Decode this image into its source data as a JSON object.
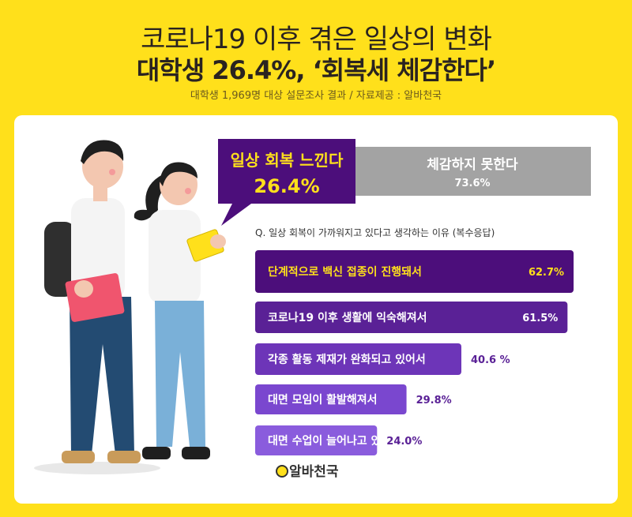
{
  "header": {
    "title_line1": "코로나19 이후 겪은 일상의 변화",
    "title_line2": "대학생 26.4%, ‘회복세 체감한다’",
    "subtitle": "대학생 1,969명 대상 설문조사 결과 / 자료제공 : 알바천국"
  },
  "summary": {
    "yes_label": "일상 회복 느낀다",
    "yes_value": "26.4%",
    "no_label": "체감하지 못한다",
    "no_value": "73.6%"
  },
  "question": "Q. 일상 회복이 가까워지고 있다고 생각하는 이유 (복수응답)",
  "logo": "알바천국",
  "colors": {
    "background": "#FFE01B",
    "accent_dark_purple": "#4C0E7B",
    "grey": "#A3A3A3",
    "bar_colors": [
      "#4C0E7B",
      "#5A2196",
      "#6D35B8",
      "#7A47CF",
      "#8A5CDD"
    ]
  },
  "chart_data": {
    "type": "bar",
    "orientation": "horizontal",
    "categories": [
      "단계적으로 백신 접종이 진행돼서",
      "코로나19 이후 생활에 익숙해져서",
      "각종 활동 제재가 완화되고 있어서",
      "대면 모임이 활발해져서",
      "대면 수업이 늘어나고 있어서"
    ],
    "values": [
      62.7,
      61.5,
      40.6,
      29.8,
      24.0
    ],
    "value_labels": [
      "62.7%",
      "61.5%",
      "40.6 %",
      "29.8%",
      "24.0%"
    ]
  }
}
